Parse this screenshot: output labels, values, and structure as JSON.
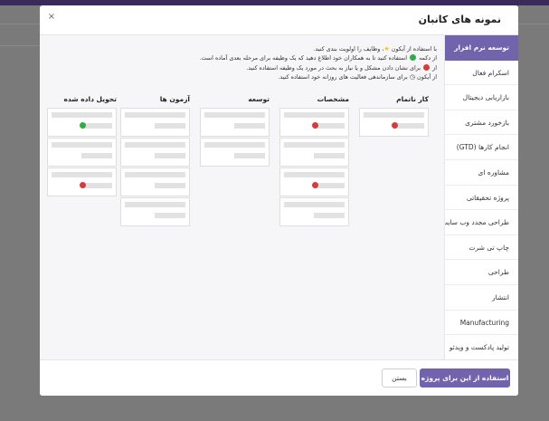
{
  "modal": {
    "title": "نمونه های کانبان",
    "close_symbol": "×"
  },
  "sidebar": {
    "items": [
      {
        "label": "توسعه نرم افزار",
        "active": true
      },
      {
        "label": "اسکرام فعال",
        "active": false
      },
      {
        "label": "بازاریابی دیجیتال",
        "active": false
      },
      {
        "label": "بازخورد مشتری",
        "active": false
      },
      {
        "label": "انجام کارها (GTD)",
        "active": false
      },
      {
        "label": "مشاوره ای",
        "active": false
      },
      {
        "label": "پروژه تحقیقاتی",
        "active": false
      },
      {
        "label": "طراحی مجدد وب سایت",
        "active": false
      },
      {
        "label": "چاپ تی شرت",
        "active": false
      },
      {
        "label": "طراحی",
        "active": false
      },
      {
        "label": "انتشار",
        "active": false
      },
      {
        "label": "Manufacturing",
        "active": false
      },
      {
        "label": "تولید پادکست و ویدئو",
        "active": false
      }
    ]
  },
  "instructions": {
    "line1_a": "با استفاده از آیکون",
    "line1_b": "، وظایف را اولویت بندی کنید.",
    "line2_a": "از دکمه",
    "line2_b": "استفاده کنید تا به همکاران خود اطلاع دهید که یک وظیفه برای مرحله بعدی آماده است.",
    "line3_a": "از",
    "line3_b": "برای نشان دادن مشکل و یا نیاز به بحث در مورد یک وظیفه استفاده کنید.",
    "line4_a": "از آیکون",
    "line4_b": "برای سازماندهی فعالیت های روزانه خود استفاده کنید."
  },
  "icons": {
    "star": "star-icon",
    "green_dot": "green-ready-dot",
    "red_dot": "red-blocked-dot",
    "clock": "clock-icon"
  },
  "colors": {
    "accent": "#7263ad",
    "green": "#33aa44",
    "red": "#d63b3b"
  },
  "columns": [
    {
      "title": "کار ناتمام",
      "cards": [
        "red"
      ]
    },
    {
      "title": "مشخصات",
      "cards": [
        "red",
        "none",
        "red",
        "none"
      ]
    },
    {
      "title": "توسعه",
      "cards": [
        "none",
        "none"
      ]
    },
    {
      "title": "آزمون ها",
      "cards": [
        "none",
        "none",
        "none",
        "none"
      ]
    },
    {
      "title": "تحویل داده شده",
      "cards": [
        "green",
        "none",
        "red"
      ]
    }
  ],
  "footer": {
    "primary_label": "استفاده از این برای پروژه من",
    "secondary_label": "بستن"
  }
}
